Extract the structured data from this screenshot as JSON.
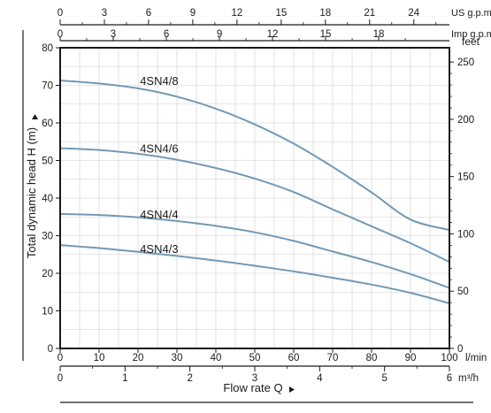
{
  "chart_data": {
    "type": "line",
    "xlabel": "Flow rate Q",
    "ylabel": "Total dynamic head H (m)",
    "x_unit": "l/min",
    "xlim": [
      0,
      100
    ],
    "ylim": [
      0,
      80
    ],
    "grid": true,
    "x_ticks": [
      0,
      10,
      20,
      30,
      40,
      50,
      60,
      70,
      80,
      90,
      100
    ],
    "y_ticks": [
      0,
      10,
      20,
      30,
      40,
      50,
      60,
      70,
      80
    ],
    "secondary_axes": {
      "us_gpm": {
        "label": "US g.p.m",
        "ticks": [
          0,
          3,
          6,
          9,
          12,
          15,
          18,
          21,
          24
        ],
        "per_lmin": 0.264172
      },
      "imp_gpm": {
        "label": "Imp g.p.m",
        "ticks": [
          0,
          3,
          6,
          9,
          12,
          15,
          18
        ],
        "per_lmin": 0.219969
      },
      "feet": {
        "label": "feet",
        "ticks": [
          0,
          50,
          100,
          150,
          200,
          250
        ],
        "per_m": 3.28084
      },
      "m3h": {
        "label": "m³/h",
        "ticks": [
          0,
          1,
          2,
          3,
          4,
          5,
          6
        ],
        "per_lmin": 0.06
      }
    },
    "series": [
      {
        "name": "4SN4/8",
        "x": [
          0,
          10,
          20,
          30,
          40,
          50,
          60,
          70,
          80,
          90,
          100
        ],
        "values": [
          71.3,
          70.5,
          69.2,
          67.0,
          63.8,
          59.6,
          54.5,
          48.3,
          41.5,
          34.3,
          31.5
        ]
      },
      {
        "name": "4SN4/6",
        "x": [
          0,
          10,
          20,
          30,
          40,
          50,
          60,
          70,
          80,
          90,
          100
        ],
        "values": [
          53.3,
          52.8,
          51.8,
          50.2,
          48.0,
          45.2,
          41.6,
          37.0,
          32.5,
          28.0,
          23.0
        ]
      },
      {
        "name": "4SN4/4",
        "x": [
          0,
          10,
          20,
          30,
          40,
          50,
          60,
          70,
          80,
          90,
          100
        ],
        "values": [
          35.8,
          35.5,
          34.9,
          33.9,
          32.6,
          30.9,
          28.6,
          25.8,
          23.0,
          19.8,
          16.1
        ]
      },
      {
        "name": "4SN4/3",
        "x": [
          0,
          10,
          20,
          30,
          40,
          50,
          60,
          70,
          80,
          90,
          100
        ],
        "values": [
          27.5,
          26.7,
          25.7,
          24.6,
          23.4,
          22.0,
          20.5,
          18.8,
          17.0,
          14.8,
          12.0
        ]
      }
    ],
    "colors": {
      "curve": "#7299b6",
      "grid": "#cfcfcf",
      "axis": "#1a1a1a"
    }
  }
}
